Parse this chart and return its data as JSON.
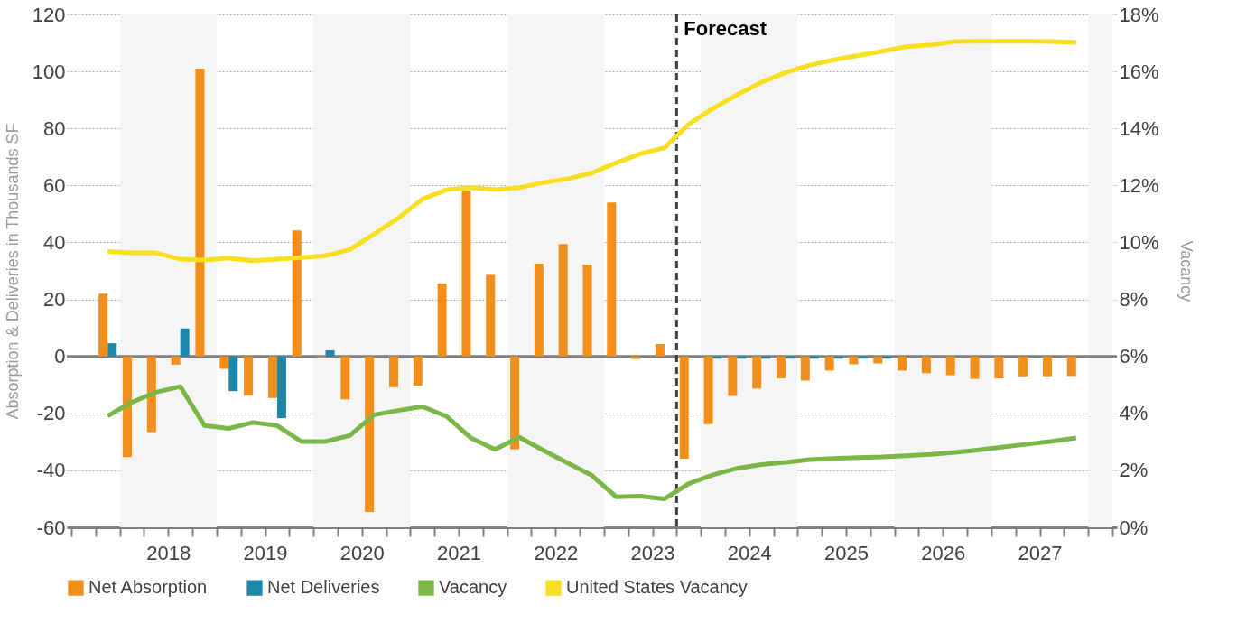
{
  "chart_data": {
    "type": "bar",
    "ylabel": "Absorption & Deliveries in Thousands SF",
    "y2label": "Vacancy",
    "x": [
      2017.875,
      2018.125,
      2018.375,
      2018.625,
      2018.875,
      2019.125,
      2019.375,
      2019.625,
      2019.875,
      2020.125,
      2020.375,
      2020.625,
      2020.875,
      2021.125,
      2021.375,
      2021.625,
      2021.875,
      2022.125,
      2022.375,
      2022.625,
      2022.875,
      2023.125,
      2023.375,
      2023.625,
      2023.875,
      2024.125,
      2024.375,
      2024.625,
      2024.875,
      2025.125,
      2025.375,
      2025.625,
      2025.875,
      2026.125,
      2026.375,
      2026.625,
      2026.875,
      2027.125,
      2027.375,
      2027.625,
      2027.875
    ],
    "series": [
      {
        "name": "Net Absorption",
        "color": "#f28e1c",
        "values": [
          22,
          -35.4,
          -26.6,
          -2.9,
          101,
          -4.4,
          -13.8,
          -14.6,
          44.2,
          -0.3,
          -15.1,
          -54.6,
          -10.8,
          -10.3,
          25.6,
          58,
          28.6,
          -32.6,
          32.5,
          39.4,
          32.2,
          54,
          -0.9,
          4.3,
          -35.9,
          -23.8,
          -13.9,
          -11.3,
          -7.7,
          -8.5,
          -5,
          -2.8,
          -2.5,
          -5,
          -5.9,
          -6.6,
          -7.9,
          -7.7,
          -7,
          -7,
          -6.9
        ]
      },
      {
        "name": "Net Deliveries",
        "color": "#1f86a8",
        "values": [
          4.6,
          0,
          0,
          9.8,
          0,
          -12.2,
          0,
          -21.7,
          0,
          2.1,
          0,
          0,
          0,
          0,
          0,
          0,
          0,
          0,
          0,
          0,
          0,
          0,
          0,
          0,
          0,
          -0.8,
          -0.8,
          -0.8,
          -0.8,
          -0.8,
          -0.8,
          -0.8,
          -0.8,
          0,
          0,
          0,
          0,
          0,
          0,
          0,
          0
        ]
      },
      {
        "name": "Vacancy",
        "type": "line",
        "axis": "y2",
        "color": "#7ab648",
        "values": [
          3.91,
          4.39,
          4.74,
          4.94,
          3.57,
          3.47,
          3.68,
          3.57,
          3.01,
          3.01,
          3.22,
          3.95,
          4.1,
          4.24,
          3.89,
          3.14,
          2.73,
          3.16,
          2.7,
          2.26,
          1.82,
          1.07,
          1.09,
          1,
          1.53,
          1.84,
          2.07,
          2.2,
          2.28,
          2.38,
          2.42,
          2.45,
          2.47,
          2.51,
          2.56,
          2.63,
          2.72,
          2.82,
          2.92,
          3.02,
          3.14
        ]
      },
      {
        "name": "United States Vacancy",
        "type": "line",
        "axis": "y2",
        "color": "#f7de1e",
        "values": [
          9.68,
          9.63,
          9.63,
          9.41,
          9.38,
          9.45,
          9.36,
          9.41,
          9.47,
          9.53,
          9.75,
          10.29,
          10.85,
          11.52,
          11.85,
          11.92,
          11.85,
          11.92,
          12.1,
          12.23,
          12.44,
          12.79,
          13.11,
          13.32,
          14.15,
          14.7,
          15.18,
          15.62,
          15.96,
          16.22,
          16.41,
          16.56,
          16.71,
          16.87,
          16.93,
          17.05,
          17.06,
          17.06,
          17.06,
          17.05,
          17.02
        ]
      }
    ],
    "xlim": [
      2017.5,
      2028.25
    ],
    "xticks": [
      {
        "value": 2017.5,
        "label": null
      },
      {
        "value": 2017.75,
        "label": null
      },
      {
        "value": 2018,
        "label": null
      },
      {
        "value": 2018.25,
        "label": null
      },
      {
        "value": 2018.5,
        "label": "2018"
      },
      {
        "value": 2018.75,
        "label": null
      },
      {
        "value": 2019,
        "label": null
      },
      {
        "value": 2019.25,
        "label": null
      },
      {
        "value": 2019.5,
        "label": "2019"
      },
      {
        "value": 2019.75,
        "label": null
      },
      {
        "value": 2020,
        "label": null
      },
      {
        "value": 2020.25,
        "label": null
      },
      {
        "value": 2020.5,
        "label": "2020"
      },
      {
        "value": 2020.75,
        "label": null
      },
      {
        "value": 2021,
        "label": null
      },
      {
        "value": 2021.25,
        "label": null
      },
      {
        "value": 2021.5,
        "label": "2021"
      },
      {
        "value": 2021.75,
        "label": null
      },
      {
        "value": 2022,
        "label": null
      },
      {
        "value": 2022.25,
        "label": null
      },
      {
        "value": 2022.5,
        "label": "2022"
      },
      {
        "value": 2022.75,
        "label": null
      },
      {
        "value": 2023,
        "label": null
      },
      {
        "value": 2023.25,
        "label": null
      },
      {
        "value": 2023.5,
        "label": "2023"
      },
      {
        "value": 2023.75,
        "label": null
      },
      {
        "value": 2024,
        "label": null
      },
      {
        "value": 2024.25,
        "label": null
      },
      {
        "value": 2024.5,
        "label": "2024"
      },
      {
        "value": 2024.75,
        "label": null
      },
      {
        "value": 2025,
        "label": null
      },
      {
        "value": 2025.25,
        "label": null
      },
      {
        "value": 2025.5,
        "label": "2025"
      },
      {
        "value": 2025.75,
        "label": null
      },
      {
        "value": 2026,
        "label": null
      },
      {
        "value": 2026.25,
        "label": null
      },
      {
        "value": 2026.5,
        "label": "2026"
      },
      {
        "value": 2026.75,
        "label": null
      },
      {
        "value": 2027,
        "label": null
      },
      {
        "value": 2027.25,
        "label": null
      },
      {
        "value": 2027.5,
        "label": "2027"
      },
      {
        "value": 2027.75,
        "label": null
      },
      {
        "value": 2028,
        "label": null
      },
      {
        "value": 2028.25,
        "label": null
      }
    ],
    "ylim": [
      -60,
      120
    ],
    "yticks": [
      -60,
      -40,
      -20,
      0,
      20,
      40,
      60,
      80,
      100,
      120
    ],
    "y2lim": [
      0,
      18
    ],
    "y2ticks": [
      {
        "value": 0,
        "label": "0%"
      },
      {
        "value": 2,
        "label": "2%"
      },
      {
        "value": 4,
        "label": "4%"
      },
      {
        "value": 6,
        "label": "6%"
      },
      {
        "value": 8,
        "label": "8%"
      },
      {
        "value": 10,
        "label": "10%"
      },
      {
        "value": 12,
        "label": "12%"
      },
      {
        "value": 14,
        "label": "14%"
      },
      {
        "value": 16,
        "label": "16%"
      },
      {
        "value": 18,
        "label": "18%"
      }
    ],
    "bands": [
      {
        "axis": "x",
        "from": 2018,
        "to": 2019,
        "color": "#f5f5f5"
      },
      {
        "axis": "x",
        "from": 2020,
        "to": 2021,
        "color": "#f5f5f5"
      },
      {
        "axis": "x",
        "from": 2022,
        "to": 2023,
        "color": "#f5f5f5"
      },
      {
        "axis": "x",
        "from": 2024,
        "to": 2025,
        "color": "#f5f5f5"
      },
      {
        "axis": "x",
        "from": 2026,
        "to": 2027,
        "color": "#f5f5f5"
      },
      {
        "axis": "x",
        "from": 2028,
        "to": 2028.25,
        "color": "#f5f5f5"
      }
    ],
    "ref_lines": [
      {
        "axis": "y",
        "value": 0,
        "color": "#7f7f7f",
        "line_style": "solid"
      },
      {
        "axis": "x",
        "value": 2023.75,
        "label": "Forecast",
        "color": "#404040",
        "line_style": "dashed"
      }
    ],
    "grid": "y",
    "legend": "bottom"
  }
}
